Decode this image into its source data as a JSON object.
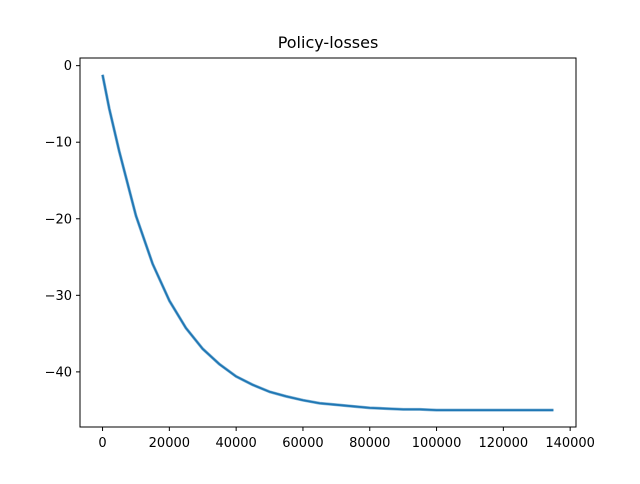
{
  "chart_data": {
    "type": "line",
    "title": "Policy-losses",
    "xlabel": "",
    "ylabel": "",
    "xlim": [
      -6750,
      141750
    ],
    "ylim": [
      -47.2,
      1.0
    ],
    "grid": false,
    "legend": "none",
    "x_ticks": [
      0,
      20000,
      40000,
      60000,
      80000,
      100000,
      120000,
      140000
    ],
    "x_tick_labels": [
      "0",
      "20000",
      "40000",
      "60000",
      "80000",
      "100000",
      "120000",
      "140000"
    ],
    "y_ticks": [
      0,
      -10,
      -20,
      -30,
      -40
    ],
    "y_tick_labels": [
      "0",
      "−10",
      "−20",
      "−30",
      "−40"
    ],
    "series": [
      {
        "color": "#1f77b4",
        "x": [
          0,
          2000,
          5000,
          10000,
          15000,
          20000,
          25000,
          30000,
          35000,
          40000,
          45000,
          50000,
          55000,
          60000,
          65000,
          70000,
          75000,
          80000,
          85000,
          90000,
          95000,
          100000,
          105000,
          110000,
          115000,
          120000,
          125000,
          130000,
          135000
        ],
        "y": [
          -1.2,
          -5.6,
          -11.2,
          -19.6,
          -25.9,
          -30.7,
          -34.3,
          -37.0,
          -39.0,
          -40.6,
          -41.7,
          -42.6,
          -43.2,
          -43.7,
          -44.1,
          -44.3,
          -44.5,
          -44.7,
          -44.8,
          -44.9,
          -44.9,
          -45.0,
          -45.0,
          -45.0,
          -45.0,
          -45.0,
          -45.0,
          -45.0,
          -45.0
        ]
      }
    ]
  }
}
